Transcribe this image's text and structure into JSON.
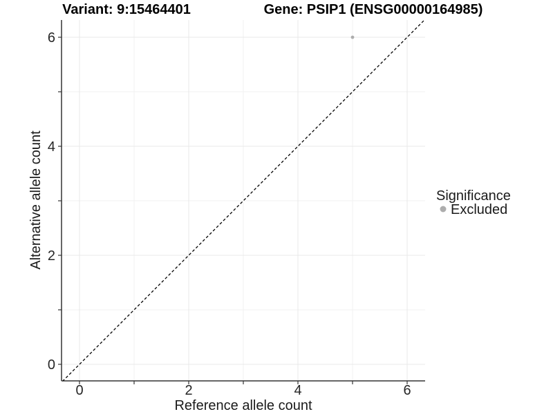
{
  "titles": {
    "variant": "Variant: 9:15464401",
    "gene": "Gene: PSIP1 (ENSG00000164985)"
  },
  "chart_data": {
    "type": "scatter",
    "xlabel": "Reference allele count",
    "ylabel": "Alternative allele count",
    "xlim": [
      -0.33,
      6.33
    ],
    "ylim": [
      -0.3,
      6.32
    ],
    "grid": true,
    "x_major_ticks": [
      0,
      2,
      4,
      6
    ],
    "x_major_labels": [
      "0",
      "2",
      "4",
      "6"
    ],
    "x_minor_ticks": [
      1,
      3,
      5
    ],
    "y_major_ticks": [
      0,
      2,
      4,
      6
    ],
    "y_major_labels": [
      "0",
      "2",
      "4",
      "6"
    ],
    "y_minor_ticks": [
      1,
      3,
      5
    ],
    "reference_line": {
      "type": "identity",
      "style": "dashed",
      "from": [
        -0.5,
        -0.5
      ],
      "to": [
        6.7,
        6.7
      ]
    },
    "points": [
      {
        "x": 5,
        "y": 6,
        "series": "Excluded"
      }
    ],
    "legend": {
      "title": "Significance",
      "position": "right",
      "items": [
        {
          "label": "Excluded",
          "color": "#adadad"
        }
      ]
    },
    "colors": {
      "axis_line": "#333333",
      "tick_mark": "#333333",
      "tick_label": "#262626",
      "grid_major": "#e8e8e8",
      "grid_minor": "#f2f2f2",
      "identity_line": "#000000",
      "point": "#adadad",
      "background": "#ffffff"
    }
  }
}
